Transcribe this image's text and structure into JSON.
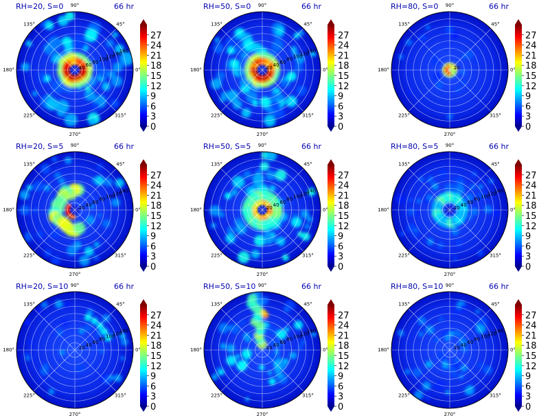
{
  "chart_data": {
    "type": "polar-contour-panel-grid",
    "colormap": "jet",
    "colorbar": {
      "ticks": [
        "0",
        "3",
        "6",
        "9",
        "12",
        "15",
        "18",
        "21",
        "24",
        "27"
      ],
      "range": [
        0,
        30
      ]
    },
    "angle_labels": [
      "90°",
      "45°",
      "0°",
      "315°",
      "270°",
      "225°",
      "180°",
      "135°"
    ],
    "panels": [
      {
        "id": "rh20-s0",
        "title": "RH=20, S=0",
        "time": "66 hr",
        "radial_labels": [
          "40",
          "60",
          "80",
          "100",
          "120",
          "140",
          "160"
        ],
        "pattern": "ring-strong"
      },
      {
        "id": "rh50-s0",
        "title": "RH=50, S=0",
        "time": "66 hr",
        "radial_labels": [
          "20",
          "40",
          "60",
          "80",
          "100",
          "120",
          "140"
        ],
        "pattern": "ring-strong"
      },
      {
        "id": "rh80-s0",
        "title": "RH=80, S=0",
        "time": "66 hr",
        "radial_labels": [
          "20"
        ],
        "pattern": "small-core"
      },
      {
        "id": "rh20-s5",
        "title": "RH=20, S=5",
        "time": "66 hr",
        "radial_labels": [
          "20",
          "40",
          "60",
          "80",
          "100",
          "120",
          "140"
        ],
        "pattern": "arc-west"
      },
      {
        "id": "rh50-s5",
        "title": "RH=50, S=5",
        "time": "66 hr",
        "radial_labels": [
          "20",
          "40",
          "60",
          "80",
          "100",
          "120",
          "140"
        ],
        "pattern": "ring-mid"
      },
      {
        "id": "rh80-s5",
        "title": "RH=80, S=5",
        "time": "66 hr",
        "radial_labels": [
          "20",
          "40",
          "60",
          "80",
          "100",
          "120",
          "140"
        ],
        "pattern": "ring-weak"
      },
      {
        "id": "rh20-s10",
        "title": "RH=20, S=10",
        "time": "66 hr",
        "radial_labels": [
          "20",
          "40",
          "60",
          "80",
          "100",
          "120",
          "140"
        ],
        "pattern": "sparse"
      },
      {
        "id": "rh50-s10",
        "title": "RH=50, S=10",
        "time": "66 hr",
        "radial_labels": [
          "20",
          "40",
          "60",
          "80",
          "100",
          "120",
          "140"
        ],
        "pattern": "north-band"
      },
      {
        "id": "rh80-s10",
        "title": "RH=80, S=10",
        "time": "66 hr",
        "radial_labels": [
          "20",
          "40",
          "60",
          "80",
          "100",
          "120",
          "140"
        ],
        "pattern": "diffuse"
      }
    ]
  }
}
